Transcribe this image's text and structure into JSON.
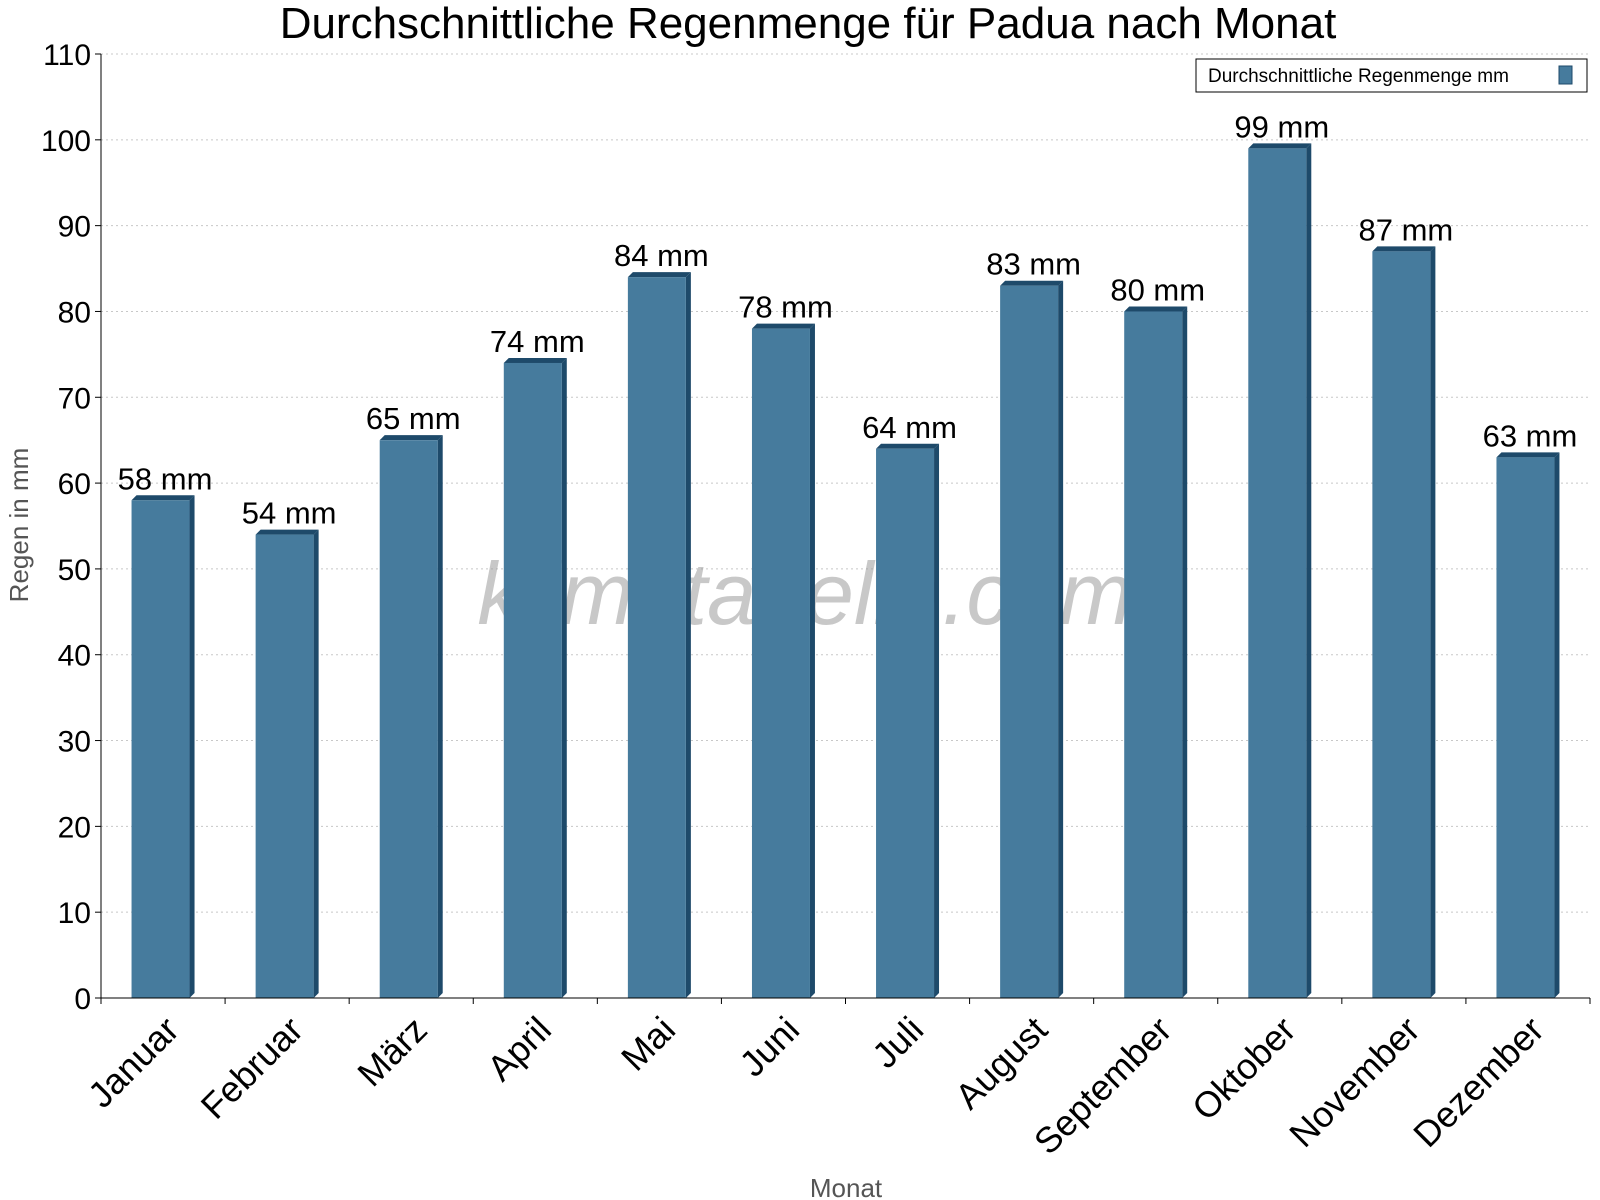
{
  "chart_data": {
    "type": "bar",
    "title": "Durchschnittliche Regenmenge für Padua nach Monat",
    "xlabel": "Monat",
    "ylabel": "Regen in mm",
    "ylim": [
      0,
      110
    ],
    "yticks": [
      0,
      10,
      20,
      30,
      40,
      50,
      60,
      70,
      80,
      90,
      100,
      110
    ],
    "grid": true,
    "legend_position": "top-right",
    "categories": [
      "Januar",
      "Februar",
      "März",
      "April",
      "Mai",
      "Juni",
      "Juli",
      "August",
      "September",
      "Oktober",
      "November",
      "Dezember"
    ],
    "series": [
      {
        "name": "Durchschnittliche Regenmenge mm",
        "values": [
          58,
          54,
          65,
          74,
          84,
          78,
          64,
          83,
          80,
          99,
          87,
          63
        ],
        "labels": [
          "58 mm",
          "54 mm",
          "65 mm",
          "74 mm",
          "84 mm",
          "78 mm",
          "64 mm",
          "83 mm",
          "80 mm",
          "99 mm",
          "87 mm",
          "63 mm"
        ],
        "color": "#467b9d",
        "edge_color": "#1e4a6a"
      }
    ],
    "watermark": "klimatabelle.com"
  }
}
